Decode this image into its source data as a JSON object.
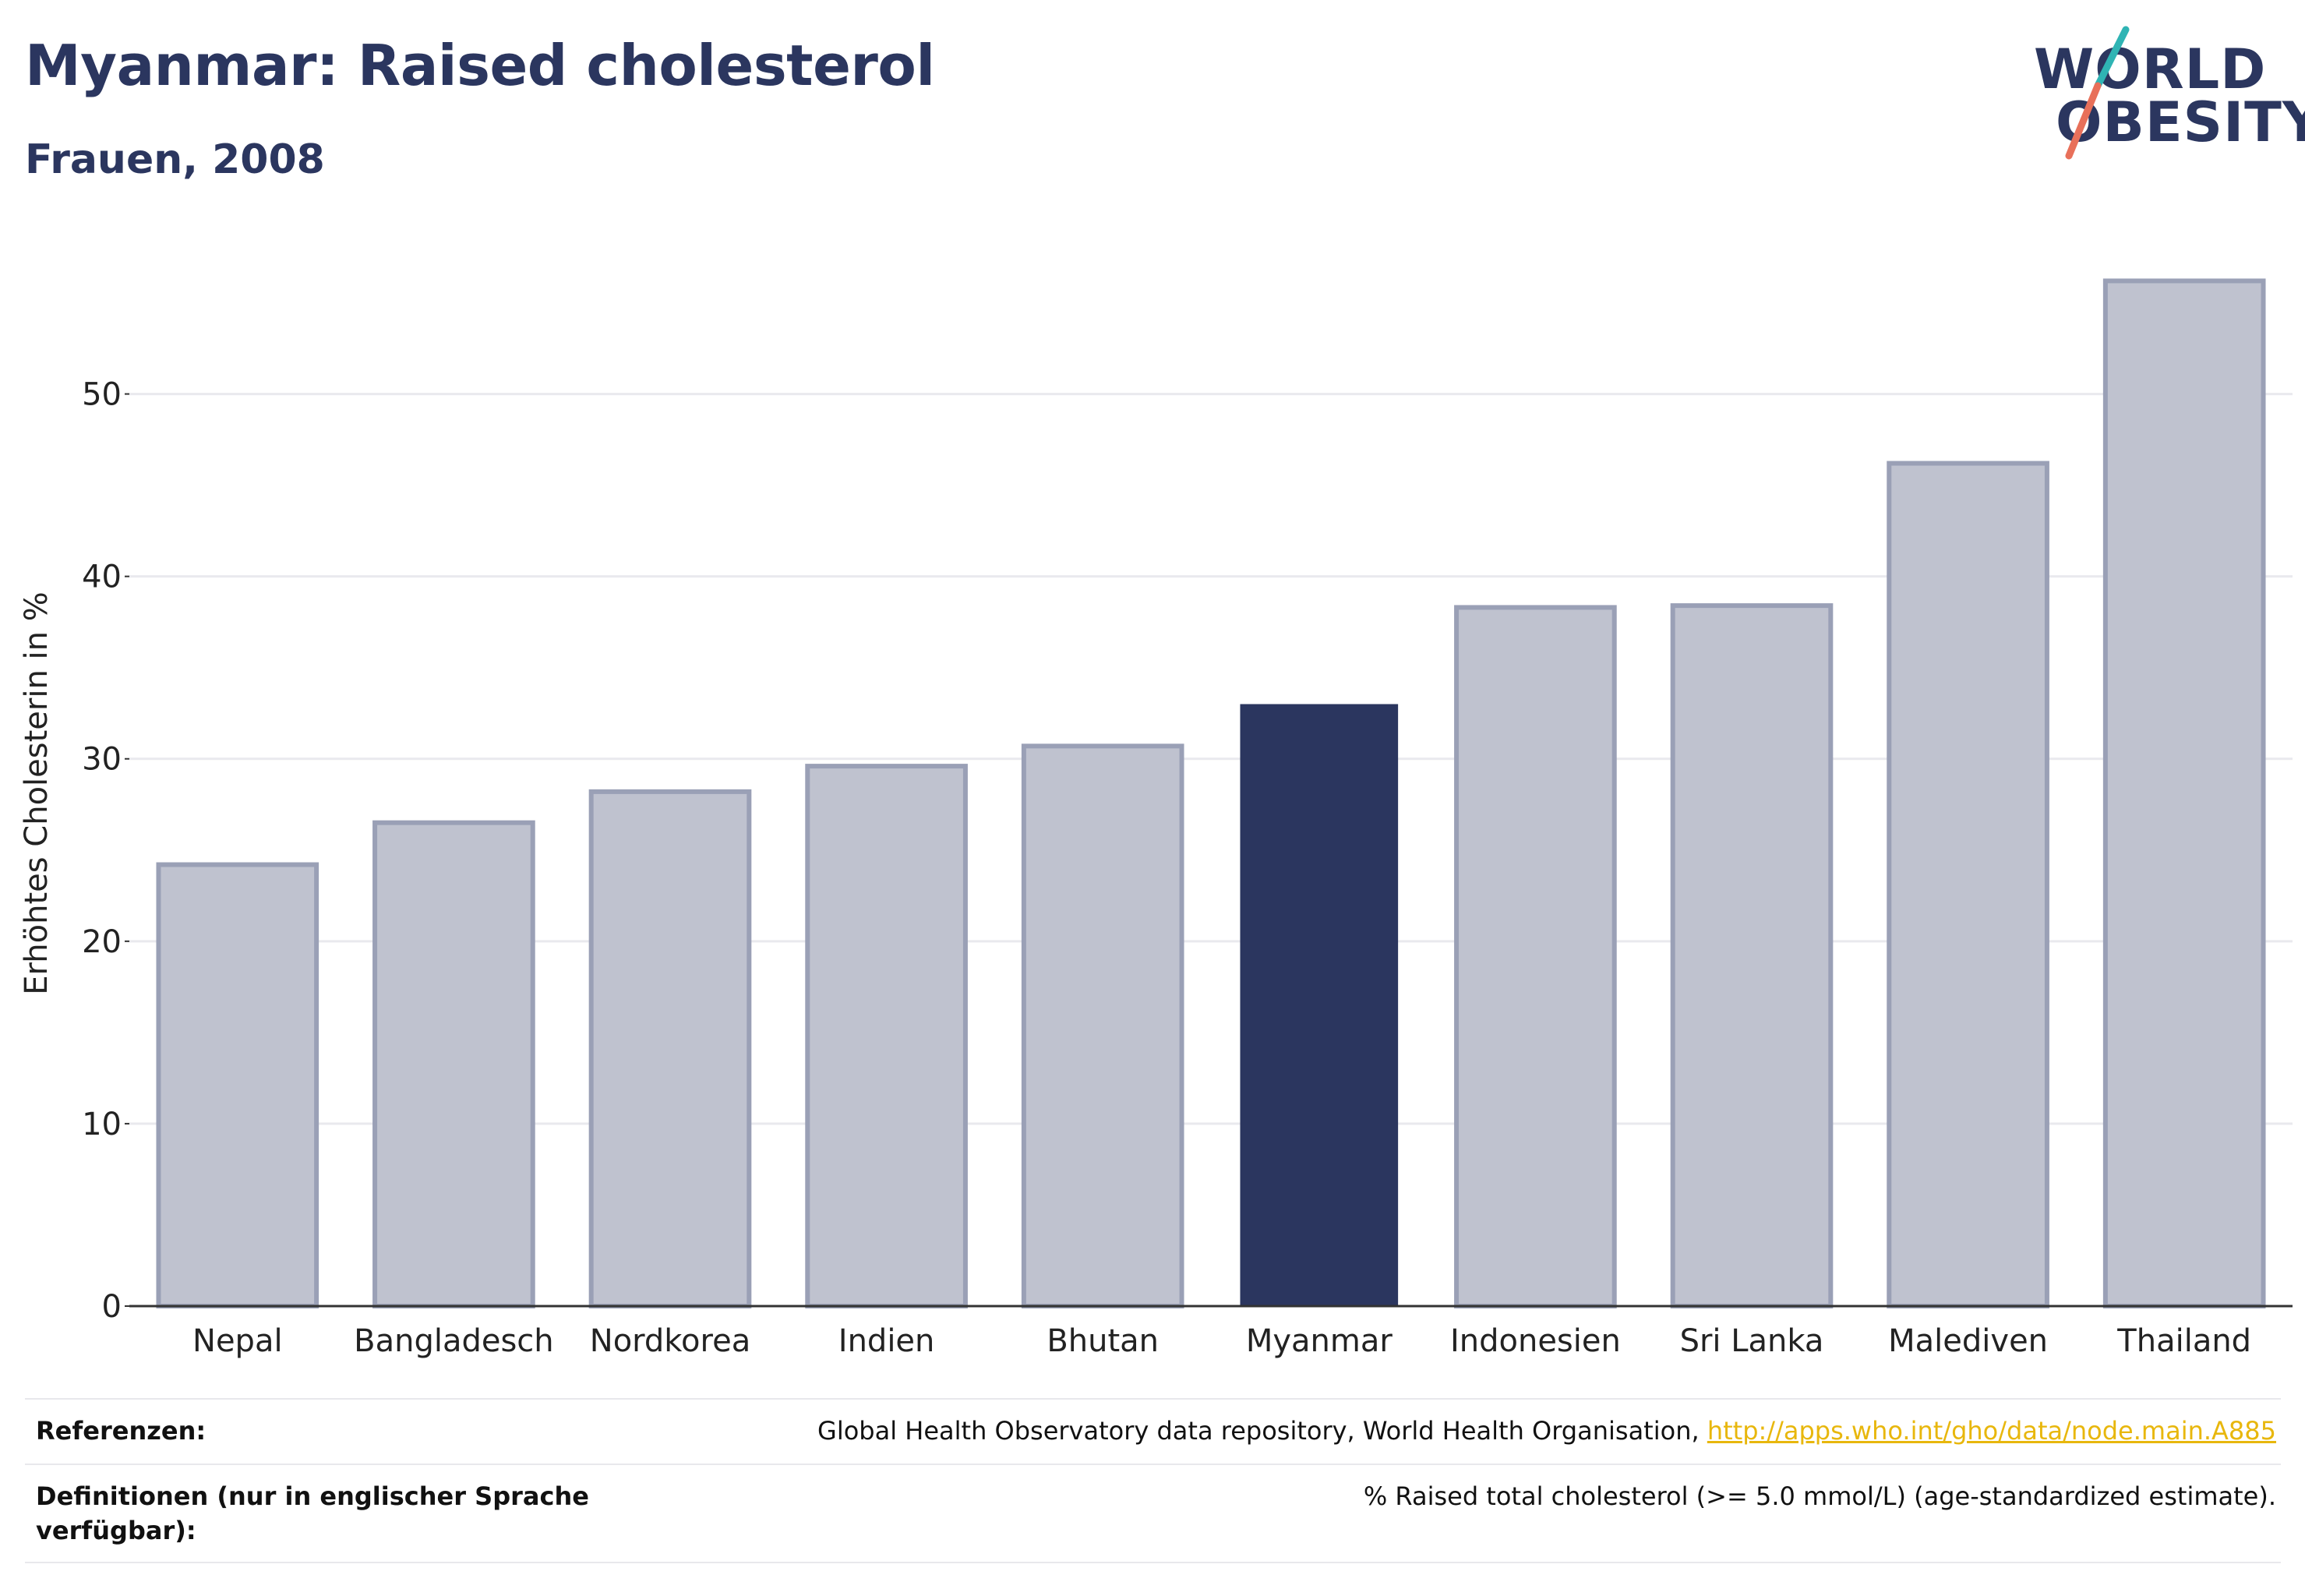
{
  "header": {
    "title": "Myanmar: Raised cholesterol",
    "subtitle": "Frauen, 2008"
  },
  "logo": {
    "line1": "WORLD",
    "line2": "OBESITY",
    "colors": {
      "text": "#2b365f",
      "slash_teal": "#2fb4b4",
      "slash_coral": "#e8705a"
    }
  },
  "chart_data": {
    "type": "bar",
    "title": "",
    "xlabel": "",
    "ylabel": "Erhöhtes Cholesterin in %",
    "ylim": [
      0,
      57.5
    ],
    "yticks": [
      0,
      10,
      20,
      30,
      40,
      50
    ],
    "grid": true,
    "categories": [
      "Nepal",
      "Bangladesch",
      "Nordkorea",
      "Indien",
      "Bhutan",
      "Myanmar",
      "Indonesien",
      "Sri Lanka",
      "Malediven",
      "Thailand"
    ],
    "values": [
      24.2,
      26.5,
      28.2,
      29.6,
      30.7,
      33.0,
      38.3,
      38.4,
      46.2,
      56.2
    ],
    "highlight": "Myanmar",
    "colors": {
      "highlight": "#2b365f",
      "other_fill": "#bfc2cf",
      "other_stroke": "#9aa0b6",
      "grid": "#e9e9ee",
      "axis": "#333333"
    }
  },
  "footer": {
    "references_label": "Referenzen:",
    "references_text": "Global Health Observatory data repository, World Health Organisation, ",
    "references_link": "http://apps.who.int/gho/data/node.main.A885",
    "definitions_label": "Definitionen (nur in englischer Sprache verfügbar):",
    "definitions_text": "% Raised total cholesterol (>= 5.0 mmol/L) (age-standardized estimate)."
  }
}
